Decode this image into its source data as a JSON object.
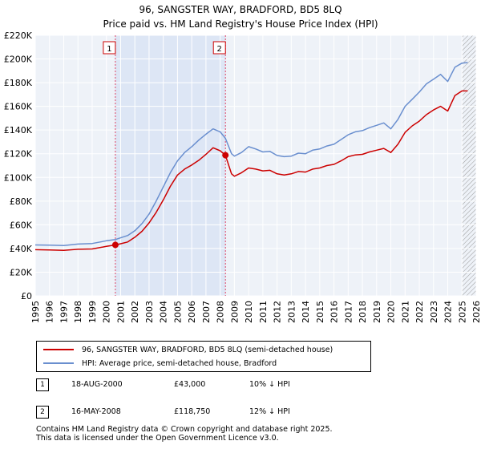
{
  "title": "96, SANGSTER WAY, BRADFORD, BD5 8LQ",
  "subtitle": "Price paid vs. HM Land Registry's House Price Index (HPI)",
  "chart_data": {
    "type": "line",
    "xlim": [
      1995,
      2026
    ],
    "ylim": [
      0,
      220000
    ],
    "x_ticks": [
      "1995",
      "1996",
      "1997",
      "1998",
      "1999",
      "2000",
      "2001",
      "2002",
      "2003",
      "2004",
      "2005",
      "2006",
      "2007",
      "2008",
      "2009",
      "2010",
      "2011",
      "2012",
      "2013",
      "2014",
      "2015",
      "2016",
      "2017",
      "2018",
      "2019",
      "2020",
      "2021",
      "2022",
      "2023",
      "2024",
      "2025",
      "2026"
    ],
    "y_ticks": [
      {
        "value": 0,
        "label": "£0"
      },
      {
        "value": 20000,
        "label": "£20K"
      },
      {
        "value": 40000,
        "label": "£40K"
      },
      {
        "value": 60000,
        "label": "£60K"
      },
      {
        "value": 80000,
        "label": "£80K"
      },
      {
        "value": 100000,
        "label": "£100K"
      },
      {
        "value": 120000,
        "label": "£120K"
      },
      {
        "value": 140000,
        "label": "£140K"
      },
      {
        "value": 160000,
        "label": "£160K"
      },
      {
        "value": 180000,
        "label": "£180K"
      },
      {
        "value": 200000,
        "label": "£200K"
      },
      {
        "value": 220000,
        "label": "£220K"
      }
    ],
    "grid": true,
    "shaded_region": [
      2000.63,
      2008.37
    ],
    "hatched_from": 2025.0,
    "series": [
      {
        "name": "96, SANGSTER WAY, BRADFORD, BD5 8LQ (semi-detached house)",
        "color": "#cc0000",
        "points": [
          [
            1995.0,
            39000
          ],
          [
            1996.0,
            38700
          ],
          [
            1997.0,
            38400
          ],
          [
            1998.0,
            39300
          ],
          [
            1999.0,
            39600
          ],
          [
            2000.0,
            41800
          ],
          [
            2000.63,
            43000
          ],
          [
            2001.0,
            44000
          ],
          [
            2001.5,
            45500
          ],
          [
            2002.0,
            49500
          ],
          [
            2002.5,
            54500
          ],
          [
            2003.0,
            61500
          ],
          [
            2003.5,
            70500
          ],
          [
            2004.0,
            81000
          ],
          [
            2004.5,
            92500
          ],
          [
            2005.0,
            102000
          ],
          [
            2005.5,
            107000
          ],
          [
            2006.0,
            110500
          ],
          [
            2006.5,
            114500
          ],
          [
            2007.0,
            119500
          ],
          [
            2007.5,
            125000
          ],
          [
            2008.0,
            122500
          ],
          [
            2008.37,
            118750
          ],
          [
            2008.8,
            103000
          ],
          [
            2009.0,
            101000
          ],
          [
            2009.5,
            104000
          ],
          [
            2010.0,
            108000
          ],
          [
            2010.5,
            107000
          ],
          [
            2011.0,
            105500
          ],
          [
            2011.5,
            106000
          ],
          [
            2012.0,
            103000
          ],
          [
            2012.5,
            102000
          ],
          [
            2013.0,
            103000
          ],
          [
            2013.5,
            105000
          ],
          [
            2014.0,
            104500
          ],
          [
            2014.5,
            107000
          ],
          [
            2015.0,
            108000
          ],
          [
            2015.5,
            110000
          ],
          [
            2016.0,
            111000
          ],
          [
            2016.5,
            114000
          ],
          [
            2017.0,
            117500
          ],
          [
            2017.5,
            119000
          ],
          [
            2018.0,
            119500
          ],
          [
            2018.5,
            121500
          ],
          [
            2019.0,
            123000
          ],
          [
            2019.5,
            124500
          ],
          [
            2020.0,
            121000
          ],
          [
            2020.5,
            128000
          ],
          [
            2021.0,
            138000
          ],
          [
            2021.5,
            143500
          ],
          [
            2022.0,
            147500
          ],
          [
            2022.5,
            153000
          ],
          [
            2023.0,
            157000
          ],
          [
            2023.5,
            160000
          ],
          [
            2024.0,
            156000
          ],
          [
            2024.5,
            169000
          ],
          [
            2025.0,
            173000
          ],
          [
            2025.4,
            173000
          ]
        ]
      },
      {
        "name": "HPI: Average price, semi-detached house, Bradford",
        "color": "#6a8fcf",
        "points": [
          [
            1995.0,
            43000
          ],
          [
            1996.0,
            42800
          ],
          [
            1997.0,
            42500
          ],
          [
            1998.0,
            43700
          ],
          [
            1999.0,
            44200
          ],
          [
            2000.0,
            46500
          ],
          [
            2000.63,
            47500
          ],
          [
            2001.0,
            49000
          ],
          [
            2001.5,
            51000
          ],
          [
            2002.0,
            55000
          ],
          [
            2002.5,
            61000
          ],
          [
            2003.0,
            69000
          ],
          [
            2003.5,
            80000
          ],
          [
            2004.0,
            92000
          ],
          [
            2004.5,
            104000
          ],
          [
            2005.0,
            114000
          ],
          [
            2005.5,
            121000
          ],
          [
            2006.0,
            126000
          ],
          [
            2006.5,
            131500
          ],
          [
            2007.0,
            136500
          ],
          [
            2007.5,
            141000
          ],
          [
            2008.0,
            138500
          ],
          [
            2008.37,
            133000
          ],
          [
            2008.8,
            120000
          ],
          [
            2009.0,
            118000
          ],
          [
            2009.5,
            121000
          ],
          [
            2010.0,
            126000
          ],
          [
            2010.5,
            124000
          ],
          [
            2011.0,
            121500
          ],
          [
            2011.5,
            122000
          ],
          [
            2012.0,
            118500
          ],
          [
            2012.5,
            117500
          ],
          [
            2013.0,
            118000
          ],
          [
            2013.5,
            120500
          ],
          [
            2014.0,
            120000
          ],
          [
            2014.5,
            123000
          ],
          [
            2015.0,
            124000
          ],
          [
            2015.5,
            126500
          ],
          [
            2016.0,
            128000
          ],
          [
            2016.5,
            132000
          ],
          [
            2017.0,
            136000
          ],
          [
            2017.5,
            138500
          ],
          [
            2018.0,
            139500
          ],
          [
            2018.5,
            142000
          ],
          [
            2019.0,
            144000
          ],
          [
            2019.5,
            146000
          ],
          [
            2020.0,
            141000
          ],
          [
            2020.5,
            149000
          ],
          [
            2021.0,
            160000
          ],
          [
            2021.5,
            166000
          ],
          [
            2022.0,
            172000
          ],
          [
            2022.5,
            179000
          ],
          [
            2023.0,
            183000
          ],
          [
            2023.5,
            187000
          ],
          [
            2024.0,
            181000
          ],
          [
            2024.5,
            193000
          ],
          [
            2025.0,
            196500
          ],
          [
            2025.4,
            197000
          ]
        ]
      }
    ],
    "sales": [
      {
        "label": "1",
        "x": 2000.63,
        "y": 43000
      },
      {
        "label": "2",
        "x": 2008.37,
        "y": 118750
      }
    ]
  },
  "legend": [
    {
      "label": "96, SANGSTER WAY, BRADFORD, BD5 8LQ (semi-detached house)",
      "color": "#cc0000"
    },
    {
      "label": "HPI: Average price, semi-detached house, Bradford",
      "color": "#6a8fcf"
    }
  ],
  "sales_table": [
    {
      "num": "1",
      "date": "18-AUG-2000",
      "price": "£43,000",
      "hpi": "10% ↓ HPI"
    },
    {
      "num": "2",
      "date": "16-MAY-2008",
      "price": "£118,750",
      "hpi": "12% ↓ HPI"
    }
  ],
  "footer": [
    "Contains HM Land Registry data © Crown copyright and database right 2025.",
    "This data is licensed under the Open Government Licence v3.0."
  ]
}
